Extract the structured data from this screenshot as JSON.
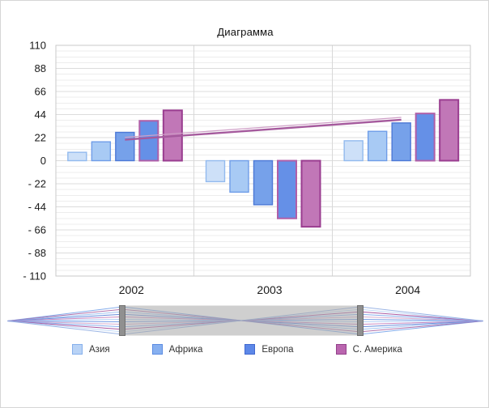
{
  "chart_data": {
    "type": "bar",
    "title": "Диаграмма",
    "categories": [
      "2002",
      "2003",
      "2004"
    ],
    "series": [
      {
        "id": "asia",
        "name": "Азия",
        "values": [
          8,
          -20,
          19
        ],
        "fill": "#cde0f8",
        "stroke": "#92baee",
        "stroke_width": 1.4
      },
      {
        "id": "africa",
        "name": "Африка",
        "values": [
          18,
          -30,
          28
        ],
        "fill": "#a8caf4",
        "stroke": "#6f9de8",
        "stroke_width": 1.4
      },
      {
        "id": "europe",
        "name": "Европа",
        "values": [
          27,
          -42,
          36
        ],
        "fill": "#76a1ea",
        "stroke": "#4d79d6",
        "stroke_width": 1.4
      },
      {
        "id": "series-4",
        "name": "",
        "values": [
          38,
          -55,
          45
        ],
        "fill": "#6590e7",
        "stroke": "#b05fa8",
        "stroke_width": 2
      },
      {
        "id": "n-america",
        "name": "С. Америка",
        "values": [
          48,
          -63,
          58
        ],
        "fill": "#c177b7",
        "stroke": "#9a3d90",
        "stroke_width": 2
      }
    ],
    "line_series": {
      "values": [
        20,
        29.5,
        39
      ],
      "color": "#a55a9d",
      "highlight_color": "#cf9fc7"
    },
    "ylim": [
      -110,
      110
    ],
    "ytick_step": 22,
    "ytick_labels": [
      "110",
      "88",
      "66",
      "44",
      "22",
      "0",
      "- 22",
      "- 44",
      "- 66",
      "- 88",
      "- 110"
    ],
    "minor_grid_step": 5.5,
    "grid": true,
    "legend_position": "bottom",
    "xlabel": "",
    "ylabel": ""
  },
  "navigator": {
    "selection_fill": "rgba(168,168,168,0.55)",
    "handle_fill": "#909090",
    "handle_stroke": "#6f6f6f",
    "line_colors": [
      "#6f9de8",
      "#a55a9d",
      "#92baee",
      "#4d79d6",
      "#c177b7",
      "#a8caf4",
      "#5c8ce2",
      "#cf9fc7",
      "#76a1ea",
      "#9a3d90",
      "#b9d3f6",
      "#8aa8e0"
    ]
  },
  "legend": {
    "items": [
      {
        "id": "asia",
        "label": "Азия",
        "fill": "#b9d3f6",
        "stroke": "#86b0ec"
      },
      {
        "id": "africa",
        "label": "Африка",
        "fill": "#87b0f0",
        "stroke": "#5c8ce2"
      },
      {
        "id": "europe",
        "label": "Европа",
        "fill": "#5d88e8",
        "stroke": "#4168cf"
      },
      {
        "id": "n-america",
        "label": "С. Америка",
        "fill": "#ba66af",
        "stroke": "#93418b"
      }
    ]
  }
}
